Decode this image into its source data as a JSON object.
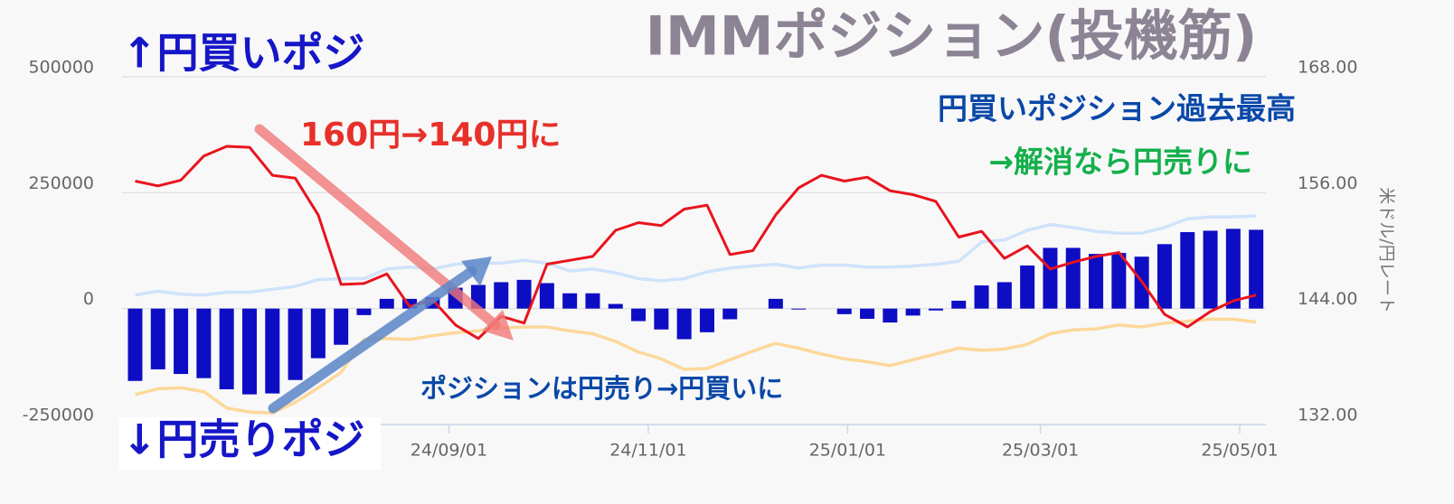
{
  "chart_data": {
    "type": "combo",
    "title": "IMMポジション(投機筋)",
    "y2_label": "米ドル/円レート",
    "annotations": [
      "↑円買いポジ",
      "↓円売りポジ",
      "160円→140円に",
      "円買いポジション過去最高",
      "→解消なら円売りに",
      "ポジションは円売り→円買いに"
    ],
    "x": [
      "2024-05-28",
      "2024-06-04",
      "2024-06-11",
      "2024-06-18",
      "2024-06-25",
      "2024-07-02",
      "2024-07-09",
      "2024-07-16",
      "2024-07-23",
      "2024-07-30",
      "2024-08-06",
      "2024-08-13",
      "2024-08-20",
      "2024-08-27",
      "2024-09-03",
      "2024-09-10",
      "2024-09-17",
      "2024-09-24",
      "2024-10-01",
      "2024-10-08",
      "2024-10-15",
      "2024-10-22",
      "2024-10-29",
      "2024-11-05",
      "2024-11-12",
      "2024-11-19",
      "2024-11-26",
      "2024-12-03",
      "2024-12-10",
      "2024-12-17",
      "2024-12-24",
      "2024-12-31",
      "2025-01-07",
      "2025-01-14",
      "2025-01-21",
      "2025-01-28",
      "2025-02-04",
      "2025-02-11",
      "2025-02-18",
      "2025-02-25",
      "2025-03-04",
      "2025-03-11",
      "2025-03-18",
      "2025-03-25",
      "2025-04-01",
      "2025-04-08",
      "2025-04-15",
      "2025-04-22",
      "2025-04-29",
      "2025-05-06"
    ],
    "xlim": [
      "2024-05-24",
      "2025-05-09"
    ],
    "xticks": [
      {
        "value": "2024-09-01",
        "label": "24/09/01"
      },
      {
        "value": "2024-11-01",
        "label": "24/11/01"
      },
      {
        "value": "2025-01-01",
        "label": "25/01/01"
      },
      {
        "value": "2025-03-01",
        "label": "25/03/01"
      },
      {
        "value": "2025-05-01",
        "label": "25/05/01"
      }
    ],
    "ylim": [
      -250000,
      500000
    ],
    "yticks": [
      -250000,
      0,
      250000,
      500000
    ],
    "y2lim": [
      132,
      168
    ],
    "y2ticks": [
      {
        "value": 132,
        "label": "132.00"
      },
      {
        "value": 144,
        "label": "144.00"
      },
      {
        "value": 156,
        "label": "156.00"
      },
      {
        "value": 168,
        "label": "168.00"
      }
    ],
    "grid": true,
    "series": [
      {
        "type": "bar",
        "color": "#0d0dc4",
        "values": [
          -156000,
          -131000,
          -141000,
          -150000,
          -174000,
          -185000,
          -183000,
          -154000,
          -107000,
          -78000,
          -14000,
          21000,
          21000,
          25000,
          45000,
          51000,
          57000,
          62000,
          55000,
          33000,
          33000,
          10000,
          -27000,
          -45000,
          -66000,
          -51000,
          -23000,
          0,
          21000,
          -2000,
          0,
          -12000,
          -22000,
          -30000,
          -15000,
          -4000,
          17000,
          50000,
          57000,
          93000,
          131000,
          131000,
          118000,
          120000,
          112000,
          139000,
          165000,
          168000,
          172000,
          170000
        ]
      },
      {
        "type": "line",
        "axis": "y2",
        "color": "#cfe3fb",
        "values": [
          145.4,
          145.8,
          145.5,
          145.4,
          145.7,
          145.7,
          146.0,
          146.3,
          147.0,
          147.1,
          147.1,
          148.1,
          148.3,
          148.1,
          148.6,
          148.7,
          148.7,
          149.0,
          148.7,
          147.9,
          148.1,
          147.7,
          147.1,
          146.9,
          147.1,
          147.8,
          148.2,
          148.4,
          148.6,
          148.2,
          148.5,
          148.5,
          148.3,
          148.3,
          148.4,
          148.6,
          148.9,
          150.9,
          151.1,
          152.1,
          152.7,
          152.4,
          152.0,
          151.8,
          151.8,
          152.4,
          153.3,
          153.5,
          153.5,
          153.6
        ]
      },
      {
        "type": "line",
        "axis": "y2",
        "color": "#fcd89a",
        "values": [
          135.1,
          135.7,
          135.8,
          135.4,
          133.7,
          133.3,
          133.2,
          134.3,
          135.8,
          137.4,
          140.8,
          140.9,
          140.8,
          141.2,
          141.5,
          141.7,
          142.0,
          142.1,
          142.1,
          141.7,
          141.4,
          140.6,
          139.5,
          138.8,
          137.7,
          137.8,
          138.7,
          139.6,
          140.4,
          139.9,
          139.3,
          138.8,
          138.5,
          138.1,
          138.7,
          139.3,
          139.9,
          139.7,
          139.8,
          140.3,
          141.4,
          141.8,
          141.9,
          142.3,
          142.1,
          142.5,
          142.7,
          142.9,
          142.9,
          142.6
        ]
      },
      {
        "type": "line",
        "axis": "y2",
        "color": "#e8141e",
        "values": [
          157.2,
          156.7,
          157.3,
          159.8,
          160.8,
          160.7,
          157.8,
          157.5,
          153.7,
          146.5,
          146.6,
          147.6,
          144.2,
          144.9,
          142.3,
          140.9,
          143.2,
          142.5,
          148.6,
          149.0,
          149.4,
          152.1,
          152.9,
          152.6,
          154.3,
          154.7,
          149.6,
          150.0,
          153.7,
          156.5,
          157.8,
          157.2,
          157.6,
          156.2,
          155.8,
          155.1,
          151.4,
          152.0,
          149.2,
          150.5,
          148.1,
          148.8,
          149.4,
          149.8,
          146.8,
          143.4,
          142.1,
          143.7,
          144.8,
          145.4
        ]
      }
    ]
  }
}
